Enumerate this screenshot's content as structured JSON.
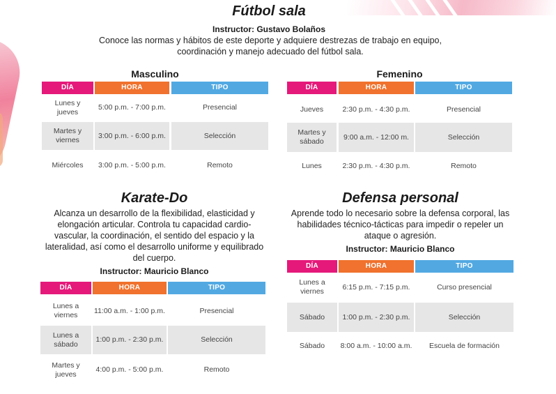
{
  "futbol": {
    "title": "Fútbol sala",
    "instructor": "Instructor: Gustavo Bolaños",
    "description": "Conoce las normas y hábitos de este deporte y adquiere destrezas de trabajo en equipo, coordinación y manejo adecuado del fútbol sala.",
    "masculino": {
      "title": "Masculino",
      "headers": [
        "DÍA",
        "HORA",
        "TIPO"
      ],
      "rows": [
        {
          "dia": "Lunes y jueves",
          "hora": "5:00 p.m. - 7:00 p.m.",
          "tipo": "Presencial"
        },
        {
          "dia": "Martes y viernes",
          "hora": "3:00 p.m. - 6:00 p.m.",
          "tipo": "Selección"
        },
        {
          "dia": "Miércoles",
          "hora": "3:00 p.m. - 5:00 p.m.",
          "tipo": "Remoto"
        }
      ]
    },
    "femenino": {
      "title": "Femenino",
      "headers": [
        "DÍA",
        "HORA",
        "TIPO"
      ],
      "rows": [
        {
          "dia": "Jueves",
          "hora": "2:30 p.m. - 4:30 p.m.",
          "tipo": "Presencial"
        },
        {
          "dia": "Martes y sábado",
          "hora": "9:00 a.m. - 12:00 m.",
          "tipo": "Selección"
        },
        {
          "dia": "Lunes",
          "hora": "2:30 p.m. - 4:30 p.m.",
          "tipo": "Remoto"
        }
      ]
    }
  },
  "karate": {
    "title": "Karate-Do",
    "description": "Alcanza un desarrollo de la flexibilidad, elasticidad y elongación articular. Controla tu capacidad cardio-vascular, la coordinación, el sentido del espacio y la lateralidad, así como el desarrollo uniforme y equilibrado del cuerpo.",
    "instructor": "Instructor: Mauricio Blanco",
    "headers": [
      "DÍA",
      "HORA",
      "TIPO"
    ],
    "rows": [
      {
        "dia": "Lunes a viernes",
        "hora": "11:00 a.m. - 1:00 p.m.",
        "tipo": "Presencial"
      },
      {
        "dia": "Lunes a sábado",
        "hora": "1:00 p.m. - 2:30 p.m.",
        "tipo": "Selección"
      },
      {
        "dia": "Martes y jueves",
        "hora": "4:00 p.m. - 5:00 p.m.",
        "tipo": "Remoto"
      }
    ]
  },
  "defensa": {
    "title": "Defensa personal",
    "description": "Aprende todo lo necesario sobre la defensa corporal, las habilidades técnico-tácticas para impedir o repeler un ataque o agresión.",
    "instructor": "Instructor: Mauricio Blanco",
    "headers": [
      "DÍA",
      "HORA",
      "TIPO"
    ],
    "rows": [
      {
        "dia": "Lunes a viernes",
        "hora": "6:15 p.m. - 7:15 p.m.",
        "tipo": "Curso presencial"
      },
      {
        "dia": "Sábado",
        "hora": "1:00 p.m. - 2:30 p.m.",
        "tipo": "Selección"
      },
      {
        "dia": "Sábado",
        "hora": "8:00 a.m. - 10:00 a.m.",
        "tipo": "Escuela de formación"
      }
    ]
  },
  "colors": {
    "dia": "#e5197a",
    "hora": "#f0722e",
    "tipo": "#52a9e2",
    "shade": "#e6e6e6"
  }
}
